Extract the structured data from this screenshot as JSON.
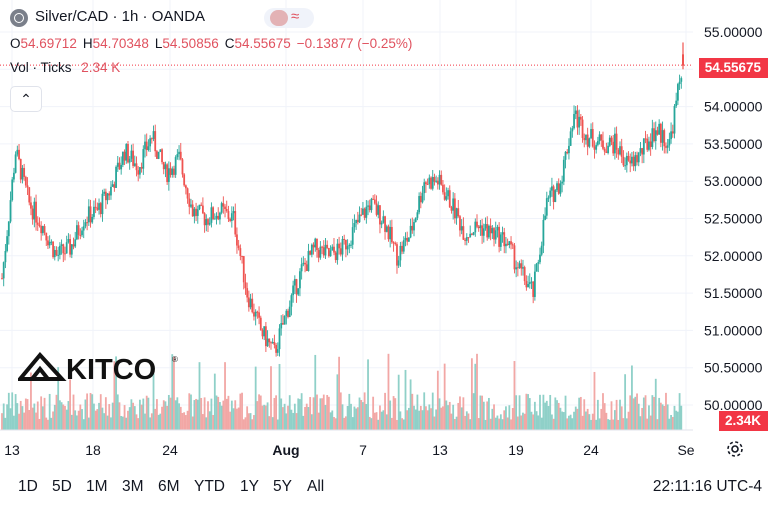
{
  "header": {
    "title": "Silver/CAD · 1h · OANDA",
    "ohlc": {
      "o_key": "O",
      "o_val": "54.69712",
      "h_key": "H",
      "h_val": "54.70348",
      "l_key": "L",
      "l_val": "54.50856",
      "c_key": "C",
      "c_val": "54.55675",
      "change": "−0.13877 (−0.25%)"
    },
    "vol_label": "Vol · Ticks",
    "vol_value": "2.34 K"
  },
  "price_tag": "54.55675",
  "volume_tag": "2.34K",
  "logo_text": "KITCO",
  "timeframes": [
    "1D",
    "5D",
    "1M",
    "3M",
    "6M",
    "YTD",
    "1Y",
    "5Y",
    "All"
  ],
  "clock": "22:11:16 UTC-4",
  "colors": {
    "up": "#26a69a",
    "down": "#ef5350",
    "up_volume": "#8fd0c8",
    "down_volume": "#f2a7a5",
    "grid": "#f0f3fa",
    "last_price_line": "#f23645"
  },
  "icons": {
    "symbol": "silver-coin-icon",
    "compare": "compare-pill-icon",
    "collapse": "chevron-up-icon",
    "settings": "gear-icon"
  },
  "chart_data": {
    "type": "candlestick",
    "title": "Silver/CAD · 1h · OANDA",
    "y_ticks": [
      "55.00000",
      "54.50000",
      "54.00000",
      "53.50000",
      "53.00000",
      "52.50000",
      "52.00000",
      "51.50000",
      "51.00000",
      "50.50000",
      "50.00000"
    ],
    "ylim": [
      49.9,
      55.3
    ],
    "x_ticks": [
      "13",
      "18",
      "24",
      "Aug",
      "7",
      "13",
      "19",
      "24",
      "Se"
    ],
    "last_price": 54.55675,
    "last_volume": "2.34K",
    "series": [
      {
        "date": "Jul 12",
        "close": 51.7
      },
      {
        "date": "Jul 13",
        "close": 53.4
      },
      {
        "date": "Jul 14",
        "close": 52.7
      },
      {
        "date": "Jul 15",
        "close": 52.4
      },
      {
        "date": "Jul 16",
        "close": 52.0
      },
      {
        "date": "Jul 17",
        "close": 52.1
      },
      {
        "date": "Jul 18",
        "close": 52.5
      },
      {
        "date": "Jul 19",
        "close": 52.6
      },
      {
        "date": "Jul 20",
        "close": 52.9
      },
      {
        "date": "Jul 21",
        "close": 53.4
      },
      {
        "date": "Jul 22",
        "close": 53.2
      },
      {
        "date": "Jul 23",
        "close": 53.6
      },
      {
        "date": "Jul 24",
        "close": 53.1
      },
      {
        "date": "Jul 25",
        "close": 53.3
      },
      {
        "date": "Jul 26",
        "close": 52.6
      },
      {
        "date": "Jul 27",
        "close": 52.5
      },
      {
        "date": "Jul 28",
        "close": 52.6
      },
      {
        "date": "Jul 29",
        "close": 52.5
      },
      {
        "date": "Jul 30",
        "close": 51.5
      },
      {
        "date": "Jul 31",
        "close": 51.0
      },
      {
        "date": "Aug 1",
        "close": 50.7
      },
      {
        "date": "Aug 2",
        "close": 51.3
      },
      {
        "date": "Aug 3",
        "close": 51.8
      },
      {
        "date": "Aug 4",
        "close": 52.1
      },
      {
        "date": "Aug 5",
        "close": 52.0
      },
      {
        "date": "Aug 6",
        "close": 52.1
      },
      {
        "date": "Aug 7",
        "close": 52.4
      },
      {
        "date": "Aug 8",
        "close": 52.7
      },
      {
        "date": "Aug 9",
        "close": 52.5
      },
      {
        "date": "Aug 10",
        "close": 52.0
      },
      {
        "date": "Aug 11",
        "close": 52.3
      },
      {
        "date": "Aug 12",
        "close": 53.0
      },
      {
        "date": "Aug 13",
        "close": 53.0
      },
      {
        "date": "Aug 14",
        "close": 52.7
      },
      {
        "date": "Aug 15",
        "close": 52.3
      },
      {
        "date": "Aug 16",
        "close": 52.4
      },
      {
        "date": "Aug 17",
        "close": 52.3
      },
      {
        "date": "Aug 18",
        "close": 52.2
      },
      {
        "date": "Aug 19",
        "close": 51.8
      },
      {
        "date": "Aug 20",
        "close": 51.5
      },
      {
        "date": "Aug 21",
        "close": 52.7
      },
      {
        "date": "Aug 22",
        "close": 53.0
      },
      {
        "date": "Aug 23",
        "close": 53.9
      },
      {
        "date": "Aug 24",
        "close": 53.6
      },
      {
        "date": "Aug 25",
        "close": 53.5
      },
      {
        "date": "Aug 26",
        "close": 53.5
      },
      {
        "date": "Aug 27",
        "close": 53.2
      },
      {
        "date": "Aug 28",
        "close": 53.4
      },
      {
        "date": "Aug 29",
        "close": 53.7
      },
      {
        "date": "Aug 30",
        "close": 53.5
      },
      {
        "date": "Aug 31",
        "close": 54.6
      }
    ]
  }
}
